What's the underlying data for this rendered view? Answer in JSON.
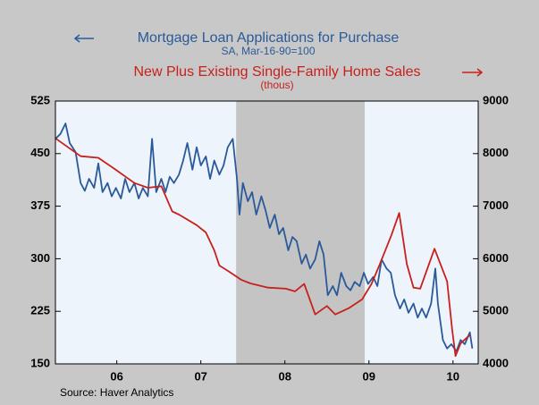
{
  "chart_data": {
    "type": "line",
    "title": "Mortgage Loan Applications for Purchase",
    "subtitle": "SA, Mar-16-90=100",
    "title2": "New Plus Existing Single-Family Home Sales",
    "subtitle2": "(thous)",
    "source": "Source: Haver Analytics",
    "xlim": [
      2005.77,
      2010.8
    ],
    "xticks": [
      {
        "value": 2006.5,
        "label": "06"
      },
      {
        "value": 2007.5,
        "label": "07"
      },
      {
        "value": 2008.5,
        "label": "08"
      },
      {
        "value": 2009.5,
        "label": "09"
      },
      {
        "value": 2010.5,
        "label": "10"
      }
    ],
    "ylim": [
      150,
      525
    ],
    "yticks": [
      150,
      225,
      300,
      375,
      450,
      525
    ],
    "y2lim": [
      4000,
      9000
    ],
    "y2ticks": [
      4000,
      5000,
      6000,
      7000,
      8000,
      9000
    ],
    "shaded_ranges": [
      [
        2007.92,
        2009.45
      ]
    ],
    "shade_color": "#c4c4c4",
    "background_color": "#eef4fc",
    "series": [
      {
        "name": "Mortgage Loan Applications for Purchase",
        "color": "#2a5a9a",
        "axis": "y",
        "x": [
          2005.77,
          2005.83,
          2005.89,
          2005.94,
          2006.01,
          2006.07,
          2006.12,
          2006.17,
          2006.23,
          2006.28,
          2006.33,
          2006.39,
          2006.44,
          2006.49,
          2006.55,
          2006.6,
          2006.65,
          2006.71,
          2006.76,
          2006.81,
          2006.87,
          2006.92,
          2006.97,
          2007.03,
          2007.08,
          2007.13,
          2007.18,
          2007.24,
          2007.29,
          2007.34,
          2007.4,
          2007.45,
          2007.5,
          2007.56,
          2007.61,
          2007.66,
          2007.72,
          2007.77,
          2007.82,
          2007.88,
          2007.93,
          2007.96,
          2008.0,
          2008.06,
          2008.11,
          2008.16,
          2008.22,
          2008.27,
          2008.32,
          2008.38,
          2008.43,
          2008.48,
          2008.54,
          2008.59,
          2008.64,
          2008.7,
          2008.75,
          2008.8,
          2008.86,
          2008.91,
          2008.96,
          2009.01,
          2009.07,
          2009.12,
          2009.17,
          2009.23,
          2009.28,
          2009.33,
          2009.39,
          2009.44,
          2009.49,
          2009.55,
          2009.6,
          2009.65,
          2009.71,
          2009.76,
          2009.81,
          2009.87,
          2009.92,
          2009.97,
          2010.03,
          2010.08,
          2010.13,
          2010.18,
          2010.24,
          2010.29,
          2010.32,
          2010.38,
          2010.43,
          2010.48,
          2010.54,
          2010.59,
          2010.64,
          2010.7,
          2010.73
        ],
        "values": [
          471,
          478,
          493,
          465,
          452,
          408,
          397,
          414,
          401,
          436,
          395,
          408,
          389,
          401,
          386,
          414,
          395,
          408,
          386,
          401,
          389,
          471,
          395,
          414,
          395,
          417,
          408,
          420,
          440,
          465,
          427,
          459,
          433,
          446,
          414,
          440,
          420,
          433,
          459,
          471,
          414,
          363,
          408,
          382,
          395,
          363,
          389,
          369,
          344,
          363,
          335,
          344,
          312,
          331,
          325,
          293,
          306,
          286,
          299,
          325,
          306,
          248,
          261,
          248,
          280,
          261,
          255,
          267,
          261,
          280,
          264,
          274,
          261,
          299,
          286,
          280,
          248,
          229,
          242,
          223,
          236,
          216,
          229,
          216,
          236,
          286,
          236,
          184,
          172,
          178,
          168,
          184,
          178,
          195,
          172
        ]
      },
      {
        "name": "New Plus Existing Single-Family Home Sales",
        "color": "#c8201c",
        "axis": "y2",
        "x": [
          2005.77,
          2006.07,
          2006.28,
          2006.49,
          2006.71,
          2006.87,
          2007.03,
          2007.16,
          2007.24,
          2007.45,
          2007.56,
          2007.66,
          2007.72,
          2007.82,
          2007.98,
          2008.09,
          2008.3,
          2008.51,
          2008.62,
          2008.73,
          2008.86,
          2009.0,
          2009.1,
          2009.26,
          2009.42,
          2009.53,
          2009.63,
          2009.77,
          2009.86,
          2009.95,
          2010.03,
          2010.11,
          2010.28,
          2010.43,
          2010.49,
          2010.53,
          2010.59,
          2010.7
        ],
        "values": [
          8290,
          7950,
          7920,
          7690,
          7440,
          7350,
          7380,
          6900,
          6840,
          6640,
          6500,
          6160,
          5870,
          5770,
          5600,
          5530,
          5450,
          5430,
          5380,
          5520,
          4940,
          5100,
          4940,
          5060,
          5230,
          5520,
          5900,
          6460,
          6870,
          5900,
          5450,
          5430,
          6190,
          5570,
          4660,
          4150,
          4390,
          4550
        ]
      }
    ]
  }
}
